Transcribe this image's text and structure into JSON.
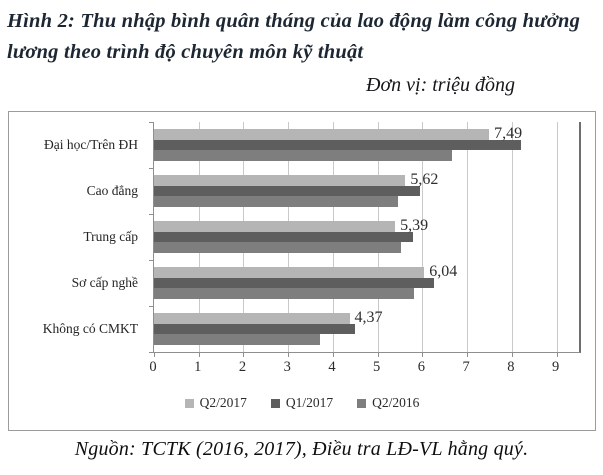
{
  "figure": {
    "title": "Hình 2: Thu nhập bình quân tháng của lao động làm công hưởng lương theo trình độ chuyên môn kỹ thuật",
    "unit_label": "Đơn vị: triệu đồng",
    "source": "Nguồn: TCTK (2016, 2017), Điều tra LĐ-VL hằng quý."
  },
  "chart_data": {
    "type": "bar",
    "orientation": "horizontal",
    "title": "Thu nhập bình quân tháng của lao động làm công hưởng lương theo trình độ chuyên môn kỹ thuật (triệu đồng)",
    "categories": [
      "Đại học/Trên ĐH",
      "Cao đẳng",
      "Trung cấp",
      "Sơ cấp nghề",
      "Không có CMKT"
    ],
    "series": [
      {
        "name": "Q2/2017",
        "color": "#b5b5b5",
        "values": [
          7.49,
          5.62,
          5.39,
          6.04,
          4.37
        ]
      },
      {
        "name": "Q1/2017",
        "color": "#5e5e5e",
        "values": [
          8.21,
          5.95,
          5.8,
          6.26,
          4.5
        ]
      },
      {
        "name": "Q2/2016",
        "color": "#7e7e7e",
        "values": [
          6.66,
          5.45,
          5.52,
          5.82,
          3.71
        ]
      }
    ],
    "data_labels": [
      "7,49",
      "5,62",
      "5,39",
      "6,04",
      "4,37"
    ],
    "data_labels_series": "Q2/2017",
    "xlim": [
      0,
      9.5
    ],
    "x_ticks": [
      0,
      1,
      2,
      3,
      4,
      5,
      6,
      7,
      8,
      9
    ],
    "grid": "vertical",
    "legend_position": "bottom",
    "legend_entries": [
      "Q2/2017",
      "Q1/2017",
      "Q2/2016"
    ]
  }
}
